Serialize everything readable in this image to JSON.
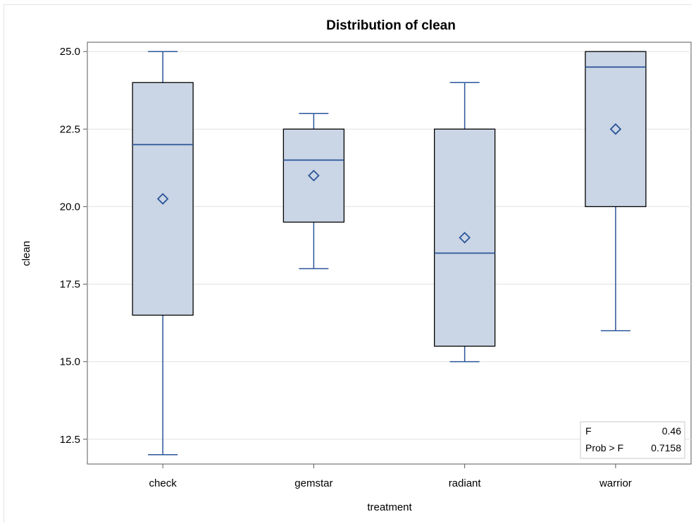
{
  "chart_data": {
    "type": "box",
    "title": "Distribution of clean",
    "xlabel": "treatment",
    "ylabel": "clean",
    "ylim": [
      11.7,
      25.3
    ],
    "yticks": [
      "12.5",
      "15.0",
      "17.5",
      "20.0",
      "22.5",
      "25.0"
    ],
    "categories": [
      "check",
      "gemstar",
      "radiant",
      "warrior"
    ],
    "boxes": [
      {
        "category": "check",
        "min": 12.0,
        "q1": 16.5,
        "median": 22.0,
        "q3": 24.0,
        "max": 25.0,
        "mean": 20.25
      },
      {
        "category": "gemstar",
        "min": 18.0,
        "q1": 19.5,
        "median": 21.5,
        "q3": 22.5,
        "max": 23.0,
        "mean": 21.0
      },
      {
        "category": "radiant",
        "min": 15.0,
        "q1": 15.5,
        "median": 18.5,
        "q3": 22.5,
        "max": 24.0,
        "mean": 19.0
      },
      {
        "category": "warrior",
        "min": 16.0,
        "q1": 20.0,
        "median": 24.5,
        "q3": 25.0,
        "max": 25.0,
        "mean": 22.5
      }
    ],
    "grid": true,
    "legend": "none",
    "colors": {
      "box_fill": "#cad5e5",
      "whisker": "#2a5599",
      "box_edge": "#000000",
      "grid": "#e0e0e0"
    },
    "stats_inset": {
      "position": "bottom-right",
      "rows": [
        {
          "label": "F",
          "value": "0.46"
        },
        {
          "label": "Prob > F",
          "value": "0.7158"
        }
      ]
    }
  }
}
